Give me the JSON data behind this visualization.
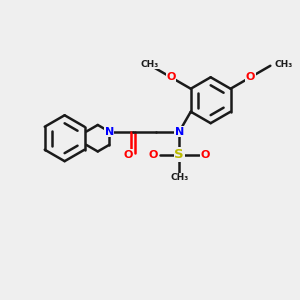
{
  "bg_color": "#efefef",
  "bond_color": "#1a1a1a",
  "N_color": "#0000ff",
  "O_color": "#ff0000",
  "S_color": "#bbbb00",
  "C_color": "#1a1a1a",
  "bond_width": 1.8,
  "figsize": [
    3.0,
    3.0
  ],
  "dpi": 100,
  "xlim": [
    0,
    10
  ],
  "ylim": [
    0,
    10
  ]
}
